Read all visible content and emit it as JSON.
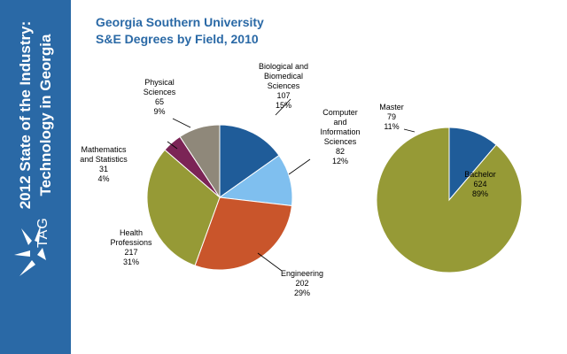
{
  "sidebar": {
    "title_lines": [
      "2012 State of the Industry:",
      "Technology in Georgia"
    ],
    "logo_text": "TAG",
    "logo_icon": "tag-star-icon",
    "color": "#2a69a6"
  },
  "header": {
    "title_lines": [
      "Georgia Southern University",
      "S&E Degrees by Field, 2010"
    ]
  },
  "chart_data": [
    {
      "type": "pie",
      "title": "",
      "slices": [
        {
          "label_lines": [
            "Biological and",
            "Biomedical",
            "Sciences"
          ],
          "value": 107,
          "percent": "15%",
          "color": "#1f5c99"
        },
        {
          "label_lines": [
            "Computer",
            "and",
            "Information",
            "Sciences"
          ],
          "value": 82,
          "percent": "12%",
          "color": "#7fbfef"
        },
        {
          "label_lines": [
            "Engineering"
          ],
          "value": 202,
          "percent": "29%",
          "color": "#c9552b"
        },
        {
          "label_lines": [
            "Health",
            "Professions"
          ],
          "value": 217,
          "percent": "31%",
          "color": "#969a36"
        },
        {
          "label_lines": [
            "Mathematics",
            "and Statistics"
          ],
          "value": 31,
          "percent": "4%",
          "color": "#7b2456"
        },
        {
          "label_lines": [
            "Physical",
            "Sciences"
          ],
          "value": 65,
          "percent": "9%",
          "color": "#8f887a"
        }
      ]
    },
    {
      "type": "pie",
      "title": "",
      "slices": [
        {
          "label_lines": [
            "Master"
          ],
          "value": 79,
          "percent": "11%",
          "color": "#1f5c99"
        },
        {
          "label_lines": [
            "Bachelor"
          ],
          "value": 624,
          "percent": "89%",
          "color": "#969a36"
        }
      ]
    }
  ]
}
